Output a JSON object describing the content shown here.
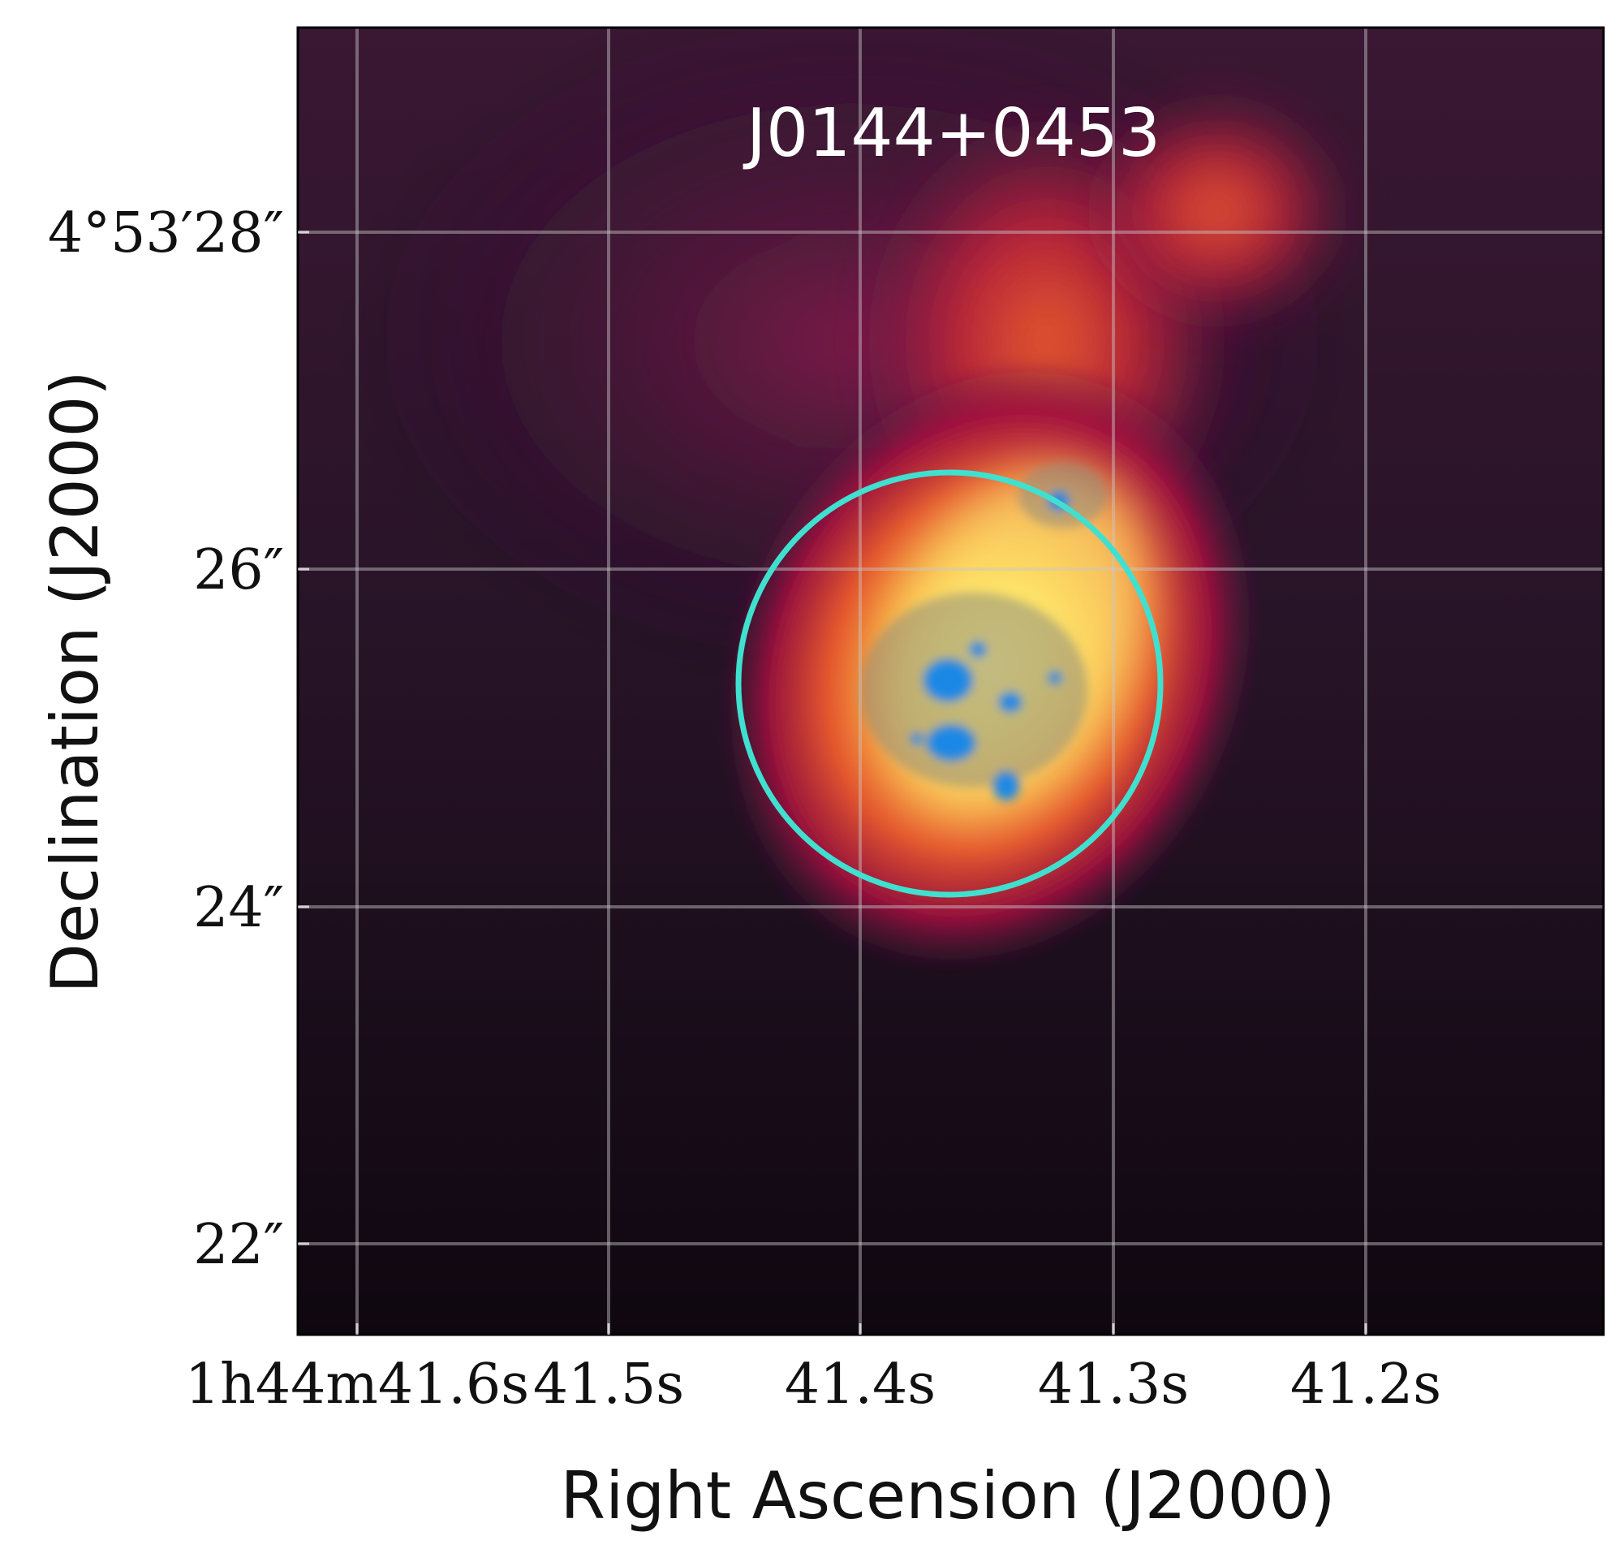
{
  "figure": {
    "title": "J0144+0453",
    "xlabel": "Right Ascension (J2000)",
    "ylabel": "Declination (J2000)",
    "colors": {
      "aperture_circle": "#40e0d0",
      "hst_overlay": "#1e88e5",
      "grid": "#c8c8c8"
    }
  },
  "chart_data": {
    "type": "image",
    "title": "J0144+0453",
    "xlabel": "Right Ascension (J2000)",
    "ylabel": "Declination (J2000)",
    "grid": true,
    "x_ticks": [
      {
        "ra_seconds": 41.6,
        "label": "1h44m41.6s"
      },
      {
        "ra_seconds": 41.5,
        "label": "41.5s"
      },
      {
        "ra_seconds": 41.4,
        "label": "41.4s"
      },
      {
        "ra_seconds": 41.3,
        "label": "41.3s"
      },
      {
        "ra_seconds": 41.2,
        "label": "41.2s"
      }
    ],
    "y_ticks": [
      {
        "dec_arcsec": 28,
        "label": "4°53′28″"
      },
      {
        "dec_arcsec": 26,
        "label": "26″"
      },
      {
        "dec_arcsec": 24,
        "label": "24″"
      },
      {
        "dec_arcsec": 22,
        "label": "22″"
      }
    ]
  }
}
